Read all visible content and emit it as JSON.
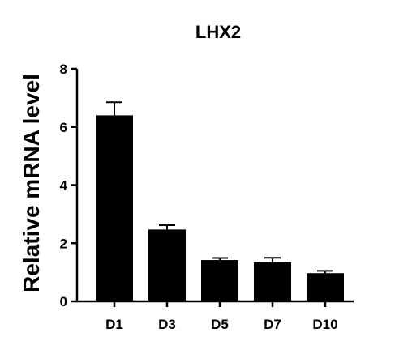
{
  "chart_data": {
    "type": "bar",
    "title": "LHX2",
    "xlabel": "",
    "ylabel": "Relative mRNA level",
    "categories": [
      "D1",
      "D3",
      "D5",
      "D7",
      "D10"
    ],
    "values": [
      6.4,
      2.47,
      1.42,
      1.35,
      0.97
    ],
    "errors": [
      0.45,
      0.15,
      0.07,
      0.15,
      0.08
    ],
    "ylim": [
      0,
      8
    ],
    "yticks": [
      0,
      2,
      4,
      6,
      8
    ],
    "ytick_labels": [
      "0",
      "2",
      "4",
      "6",
      "8"
    ],
    "bar_color": "#000000",
    "grid": false,
    "legend": "none"
  }
}
